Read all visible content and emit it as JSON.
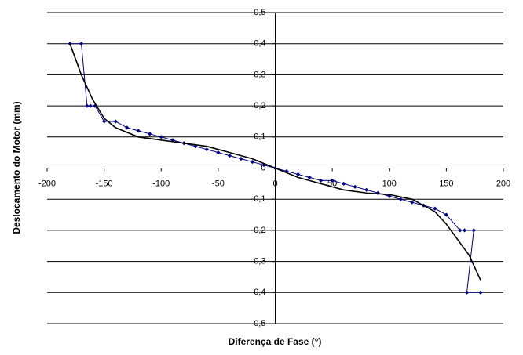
{
  "chart_data": {
    "type": "scatter",
    "x_label": "Diferença de Fase (°)",
    "y_label": "Deslocamento do Motor (mm)",
    "xlim": [
      -200,
      200
    ],
    "xticks": [
      -200,
      -150,
      -100,
      -50,
      0,
      50,
      100,
      150,
      200
    ],
    "ylim": [
      -0.5,
      0.5
    ],
    "yticks": [
      {
        "value": -0.5,
        "label": "-0,5"
      },
      {
        "value": -0.4,
        "label": "-0,4"
      },
      {
        "value": -0.3,
        "label": "-0,3"
      },
      {
        "value": -0.2,
        "label": "-0,2"
      },
      {
        "value": -0.1,
        "label": "-0,1"
      },
      {
        "value": 0,
        "label": "0"
      },
      {
        "value": 0.1,
        "label": "0,1"
      },
      {
        "value": 0.2,
        "label": "0,2"
      },
      {
        "value": 0.3,
        "label": "0,3"
      },
      {
        "value": 0.4,
        "label": "0,4"
      },
      {
        "value": 0.5,
        "label": "0,5"
      }
    ],
    "grid": true,
    "series": [
      {
        "color": "#000080",
        "markers": true,
        "x": [
          -180,
          -170,
          -165,
          -162,
          -158,
          -150,
          -140,
          -130,
          -120,
          -110,
          -100,
          -90,
          -80,
          -70,
          -60,
          -50,
          -40,
          -30,
          -20,
          -10,
          0,
          10,
          20,
          30,
          40,
          50,
          60,
          70,
          80,
          90,
          100,
          110,
          120,
          130,
          140,
          150,
          162,
          166,
          174,
          168,
          180
        ],
        "values": [
          0.4,
          0.4,
          0.2,
          0.2,
          0.2,
          0.15,
          0.15,
          0.13,
          0.12,
          0.11,
          0.1,
          0.09,
          0.08,
          0.07,
          0.06,
          0.05,
          0.04,
          0.03,
          0.02,
          0.01,
          0,
          -0.01,
          -0.02,
          -0.03,
          -0.04,
          -0.04,
          -0.05,
          -0.06,
          -0.07,
          -0.08,
          -0.09,
          -0.1,
          -0.11,
          -0.12,
          -0.13,
          -0.15,
          -0.2,
          -0.2,
          -0.2,
          -0.4,
          -0.4
        ]
      },
      {
        "color": "#000000",
        "markers": false,
        "x": [
          -180,
          -170,
          -160,
          -150,
          -140,
          -120,
          -100,
          -80,
          -60,
          -40,
          -20,
          0,
          20,
          40,
          60,
          80,
          100,
          120,
          140,
          150,
          160,
          170,
          180
        ],
        "values": [
          0.4,
          0.3,
          0.22,
          0.16,
          0.13,
          0.1,
          0.09,
          0.08,
          0.07,
          0.05,
          0.03,
          0,
          -0.03,
          -0.05,
          -0.07,
          -0.08,
          -0.085,
          -0.1,
          -0.14,
          -0.18,
          -0.23,
          -0.28,
          -0.36
        ]
      }
    ]
  }
}
